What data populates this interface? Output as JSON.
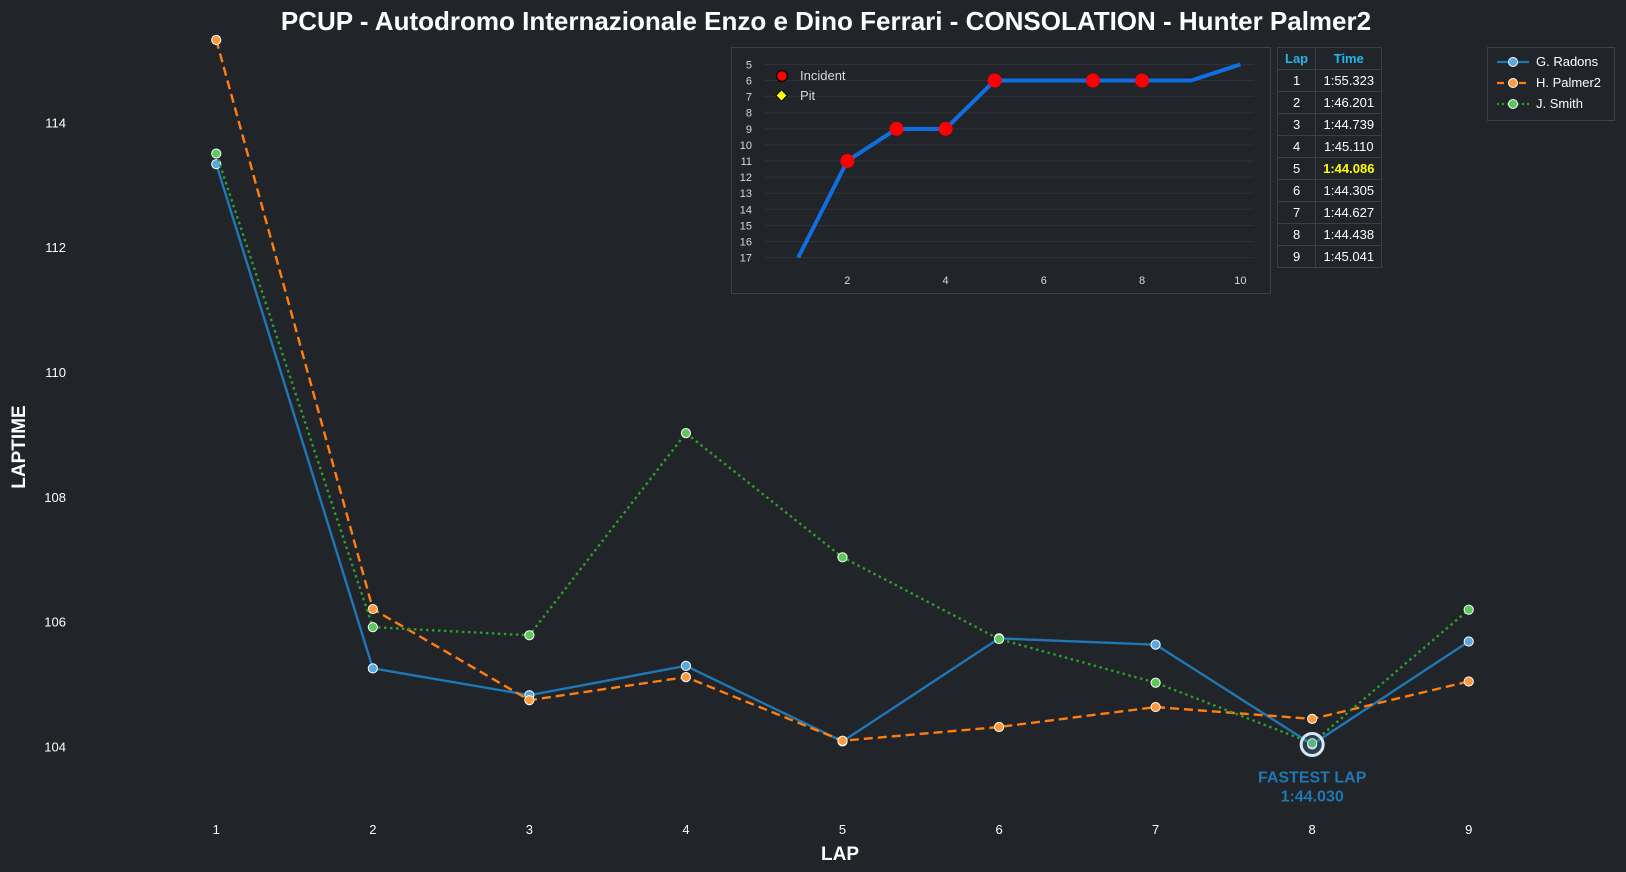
{
  "chart_data": {
    "type": "line",
    "title": "PCUP - Autodromo Internazionale Enzo e Dino Ferrari - CONSOLATION - Hunter Palmer2",
    "xlabel": "LAP",
    "ylabel": "LAPTIME",
    "x": [
      1,
      2,
      3,
      4,
      5,
      6,
      7,
      8,
      9
    ],
    "xticks": [
      "1",
      "2",
      "3",
      "4",
      "5",
      "6",
      "7",
      "8",
      "9"
    ],
    "yticks": [
      "104",
      "106",
      "108",
      "110",
      "112",
      "114"
    ],
    "ylim": [
      102.9,
      115.4
    ],
    "xlim": [
      0.5,
      9.5
    ],
    "legend_position": "top-right",
    "series": [
      {
        "name": "G. Radons",
        "color": "#1f77b4",
        "style": "solid",
        "values": [
          113.33,
          105.25,
          104.82,
          105.29,
          104.08,
          105.73,
          105.63,
          104.03,
          105.68
        ]
      },
      {
        "name": "H. Palmer2",
        "color": "#ff7f0e",
        "style": "dashed",
        "values": [
          115.32,
          106.2,
          104.74,
          105.11,
          104.09,
          104.31,
          104.63,
          104.44,
          105.04
        ]
      },
      {
        "name": "J. Smith",
        "color": "#2ca02c",
        "style": "dotted",
        "values": [
          113.5,
          105.91,
          105.78,
          109.02,
          107.03,
          105.72,
          105.02,
          104.05,
          106.19
        ]
      }
    ],
    "annotation": {
      "label": "FASTEST LAP",
      "time": "1:44.030",
      "x": 8,
      "y": 104.03
    }
  },
  "position_chart": {
    "type": "line",
    "x": [
      1,
      2,
      3,
      4,
      5,
      6,
      7,
      8,
      9,
      10
    ],
    "positions": [
      17,
      11,
      9,
      9,
      6,
      6,
      6,
      6,
      6,
      5
    ],
    "yticks": [
      "5",
      "6",
      "7",
      "8",
      "9",
      "10",
      "11",
      "12",
      "13",
      "14",
      "15",
      "16",
      "17"
    ],
    "xticks": [
      "2",
      "4",
      "6",
      "8",
      "10"
    ],
    "ylim": [
      4.6,
      17.4
    ],
    "xlim": [
      0.1,
      10.4
    ],
    "line_color": "#0f6fe0",
    "incident_laps": [
      2,
      3,
      4,
      5,
      7,
      8
    ],
    "pit_laps": [],
    "legend": [
      {
        "label": "Incident",
        "color": "#ff0000"
      },
      {
        "label": "Pit",
        "color": "#ffff00"
      }
    ]
  },
  "lap_table": {
    "headers": [
      "Lap",
      "Time"
    ],
    "rows": [
      {
        "lap": "1",
        "time": "1:55.323"
      },
      {
        "lap": "2",
        "time": "1:46.201"
      },
      {
        "lap": "3",
        "time": "1:44.739"
      },
      {
        "lap": "4",
        "time": "1:45.110"
      },
      {
        "lap": "5",
        "time": "1:44.086"
      },
      {
        "lap": "6",
        "time": "1:44.305"
      },
      {
        "lap": "7",
        "time": "1:44.627"
      },
      {
        "lap": "8",
        "time": "1:44.438"
      },
      {
        "lap": "9",
        "time": "1:45.041"
      }
    ],
    "best_row": 4,
    "header_color": "#1fb7ec",
    "best_color": "#ffff00"
  },
  "colors": {
    "background": "#212429",
    "text": "#ffffff",
    "grid": "#3b3f46"
  }
}
